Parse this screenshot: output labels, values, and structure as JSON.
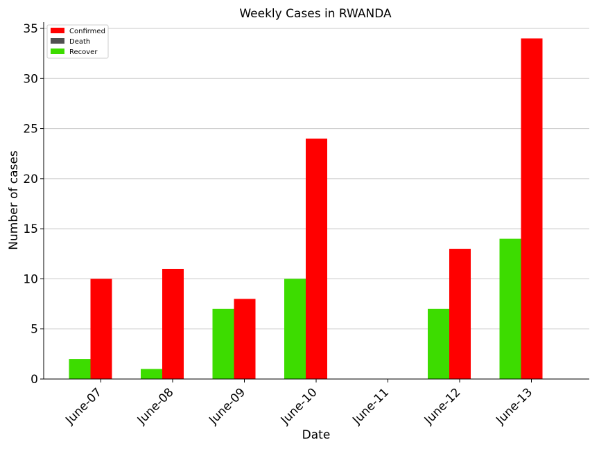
{
  "chart_data": {
    "type": "bar",
    "title": "Weekly Cases in RWANDA",
    "xlabel": "Date",
    "ylabel": "Number of cases",
    "categories": [
      "June-07",
      "June-08",
      "June-09",
      "June-10",
      "June-11",
      "June-12",
      "June-13"
    ],
    "series": [
      {
        "name": "Recover",
        "color": "#3ddc00",
        "values": [
          2,
          1,
          7,
          10,
          0,
          7,
          14
        ]
      },
      {
        "name": "Confirmed",
        "color": "#ff0000",
        "values": [
          10,
          11,
          8,
          24,
          0,
          13,
          34
        ]
      },
      {
        "name": "Death",
        "color": "#505050",
        "values": [
          0,
          0,
          0,
          0,
          0,
          0,
          0
        ]
      }
    ],
    "legend": [
      "Confirmed",
      "Death",
      "Recover"
    ],
    "ylim": [
      0,
      35
    ],
    "yticks": [
      0,
      5,
      10,
      15,
      20,
      25,
      30,
      35
    ],
    "grid": "y",
    "legend_position": "top-left"
  }
}
